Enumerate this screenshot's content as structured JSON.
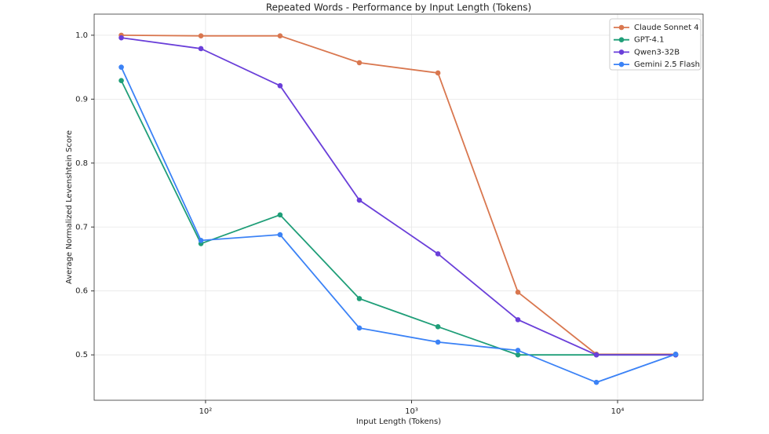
{
  "chart_data": {
    "type": "line",
    "title": "Repeated Words - Performance by Input Length (Tokens)",
    "x_label": "Input Length (Tokens)",
    "y_label": "Average Normalized Levenshtein Score",
    "x": [
      39,
      95,
      230,
      558,
      1343,
      3283,
      7890,
      19140
    ],
    "series": [
      {
        "name": "Claude Sonnet 4",
        "color": "#d9774f",
        "values": [
          1.0,
          0.999,
          0.999,
          0.957,
          0.941,
          0.598,
          0.501,
          0.501
        ]
      },
      {
        "name": "GPT-4.1",
        "color": "#1f9e78",
        "values": [
          0.929,
          0.674,
          0.719,
          0.588,
          0.544,
          0.5,
          0.5,
          0.5
        ]
      },
      {
        "name": "Qwen3-32B",
        "color": "#6a3fd9",
        "values": [
          0.996,
          0.979,
          0.921,
          0.742,
          0.658,
          0.555,
          0.5,
          0.5
        ]
      },
      {
        "name": "Gemini 2.5 Flash",
        "color": "#3b82f6",
        "values": [
          0.95,
          0.679,
          0.688,
          0.542,
          0.52,
          0.507,
          0.457,
          0.501
        ]
      }
    ],
    "xlim": [
      28.8,
      26000
    ],
    "x_log": true,
    "xticks": [
      {
        "value": 100,
        "label": "10²"
      },
      {
        "value": 1000,
        "label": "10³"
      },
      {
        "value": 10000,
        "label": "10⁴"
      }
    ],
    "ylim": [
      0.429,
      1.033
    ],
    "yticks": [
      0.5,
      0.6,
      0.7,
      0.8,
      0.9,
      {
        "value": 1,
        "label": "1.0"
      }
    ],
    "grid": true,
    "legend": "upper-right"
  }
}
